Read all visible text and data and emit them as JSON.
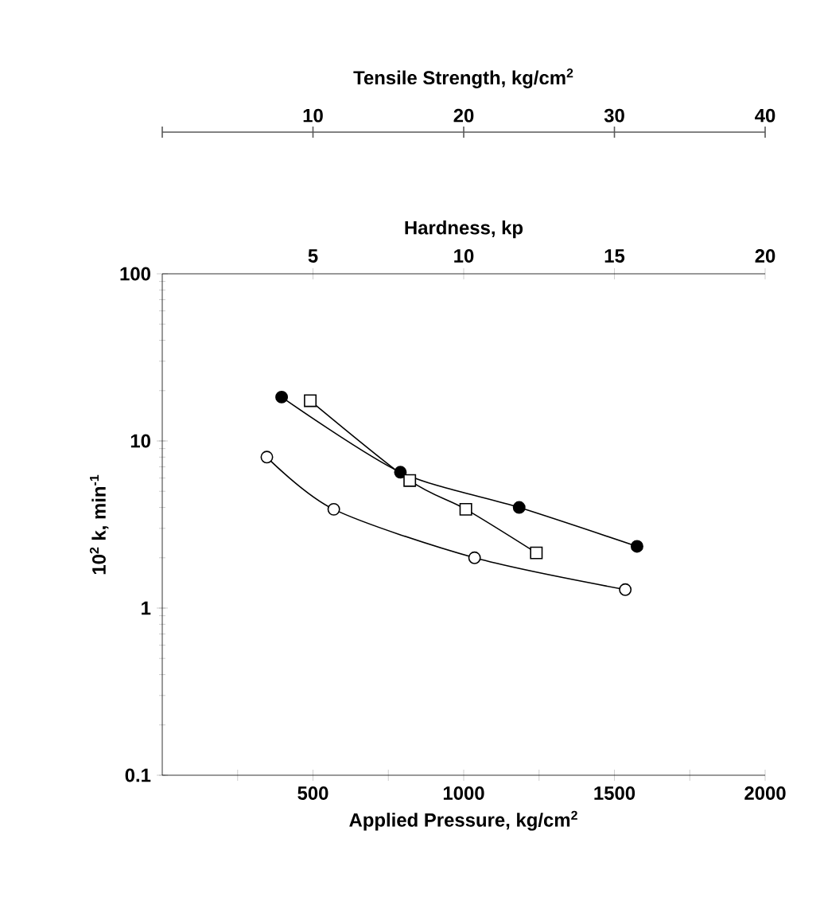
{
  "chart_data": {
    "type": "line",
    "xlabel": "Applied Pressure, kg/cm$^{2}$",
    "x2label": "Hardness, kp",
    "annotations": [
      "Tensile Strength, kg/cm$^{2}$",
      "10",
      "20",
      "30",
      "40"
    ],
    "ylabel": "10$^{2}$ k, min$^{-1}$",
    "xlim": [
      0,
      2000
    ],
    "xticks": [
      {
        "value": 250,
        "label": null
      },
      500,
      {
        "value": 750,
        "label": null
      },
      1000,
      {
        "value": 1250,
        "label": null
      },
      1500,
      {
        "value": 1750,
        "label": null
      },
      2000
    ],
    "x2lim": [
      0,
      20
    ],
    "x2ticks": [
      5,
      10,
      15,
      20
    ],
    "ylim": [
      0.1,
      100
    ],
    "yticks": [
      0.1,
      1,
      10,
      100
    ],
    "log": "y",
    "grid": false,
    "line_style": "solid",
    "series": [
      {
        "color": "#000000",
        "marker": "circle",
        "colors": [
          "#000000",
          "#000000",
          "#000000",
          "#000000"
        ],
        "x": [
          396,
          790,
          1184,
          1575
        ],
        "values": [
          18.3,
          6.5,
          4.0,
          2.34
        ]
      },
      {
        "color": "#000000",
        "marker": "square",
        "colors": [
          "#ffffff",
          "#ffffff",
          "#ffffff",
          "#ffffff"
        ],
        "x": [
          491,
          821,
          1007,
          1241
        ],
        "values": [
          17.4,
          5.8,
          3.9,
          2.14
        ]
      },
      {
        "color": "#000000",
        "marker": "circle",
        "colors": [
          "#ffffff",
          "#ffffff",
          "#ffffff",
          "#ffffff"
        ],
        "x": [
          347,
          569,
          1036,
          1536
        ],
        "values": [
          8.0,
          3.9,
          2.0,
          1.29
        ]
      }
    ]
  }
}
